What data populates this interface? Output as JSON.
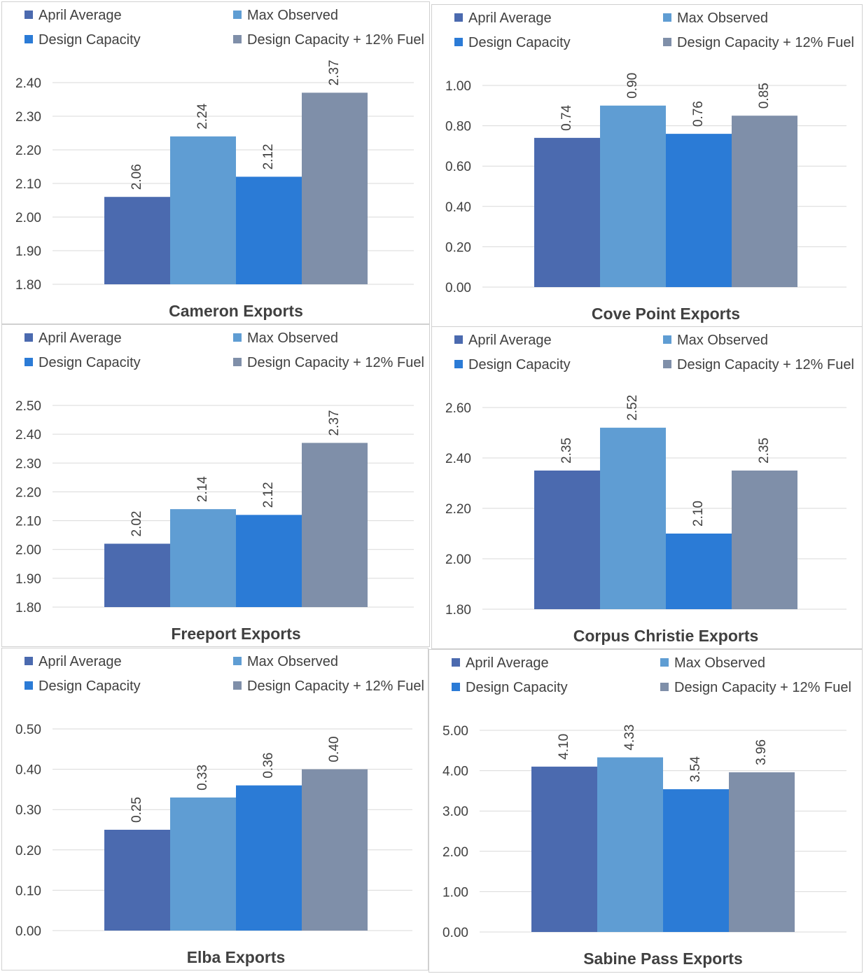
{
  "series_colors": [
    "#4b6aaf",
    "#5f9dd3",
    "#2b7bd6",
    "#7f8fa9"
  ],
  "chart_data": [
    {
      "type": "bar",
      "title": "Cameron Exports",
      "categories": [
        ""
      ],
      "series": [
        {
          "name": "April Average",
          "values": [
            2.06
          ],
          "label": "2.06"
        },
        {
          "name": "Max Observed",
          "values": [
            2.24
          ],
          "label": "2.24"
        },
        {
          "name": "Design Capacity",
          "values": [
            2.12
          ],
          "label": "2.12"
        },
        {
          "name": "Design Capacity + 12% Fuel",
          "values": [
            2.37
          ],
          "label": "2.37"
        }
      ],
      "ylim": [
        1.8,
        2.4
      ],
      "yticks": [
        "1.80",
        "1.90",
        "2.00",
        "2.10",
        "2.20",
        "2.30",
        "2.40"
      ],
      "grid": true,
      "legend": "top"
    },
    {
      "type": "bar",
      "title": "Cove Point Exports",
      "categories": [
        ""
      ],
      "series": [
        {
          "name": "April Average",
          "values": [
            0.74
          ],
          "label": "0.74"
        },
        {
          "name": "Max Observed",
          "values": [
            0.9
          ],
          "label": "0.90"
        },
        {
          "name": "Design Capacity",
          "values": [
            0.76
          ],
          "label": "0.76"
        },
        {
          "name": "Design Capacity + 12% Fuel",
          "values": [
            0.85
          ],
          "label": "0.85"
        }
      ],
      "ylim": [
        0,
        1.0
      ],
      "yticks": [
        "0.00",
        "0.20",
        "0.40",
        "0.60",
        "0.80",
        "1.00"
      ],
      "grid": true,
      "legend": "top"
    },
    {
      "type": "bar",
      "title": "Freeport Exports",
      "categories": [
        ""
      ],
      "series": [
        {
          "name": "April Average",
          "values": [
            2.02
          ],
          "label": "2.02"
        },
        {
          "name": "Max Observed",
          "values": [
            2.14
          ],
          "label": "2.14"
        },
        {
          "name": "Design Capacity",
          "values": [
            2.12
          ],
          "label": "2.12"
        },
        {
          "name": "Design Capacity + 12% Fuel",
          "values": [
            2.37
          ],
          "label": "2.37"
        }
      ],
      "ylim": [
        1.8,
        2.5
      ],
      "yticks": [
        "1.80",
        "1.90",
        "2.00",
        "2.10",
        "2.20",
        "2.30",
        "2.40",
        "2.50"
      ],
      "grid": true,
      "legend": "top"
    },
    {
      "type": "bar",
      "title": "Corpus Christie Exports",
      "categories": [
        ""
      ],
      "series": [
        {
          "name": "April Average",
          "values": [
            2.35
          ],
          "label": "2.35"
        },
        {
          "name": "Max Observed",
          "values": [
            2.52
          ],
          "label": "2.52"
        },
        {
          "name": "Design Capacity",
          "values": [
            2.1
          ],
          "label": "2.10"
        },
        {
          "name": "Design Capacity + 12% Fuel",
          "values": [
            2.35
          ],
          "label": "2.35"
        }
      ],
      "ylim": [
        1.8,
        2.6
      ],
      "yticks": [
        "1.80",
        "2.00",
        "2.20",
        "2.40",
        "2.60"
      ],
      "grid": true,
      "legend": "top"
    },
    {
      "type": "bar",
      "title": "Elba Exports",
      "categories": [
        ""
      ],
      "series": [
        {
          "name": "April Average",
          "values": [
            0.25
          ],
          "label": "0.25"
        },
        {
          "name": "Max Observed",
          "values": [
            0.33
          ],
          "label": "0.33"
        },
        {
          "name": "Design Capacity",
          "values": [
            0.36
          ],
          "label": "0.36"
        },
        {
          "name": "Design Capacity + 12% Fuel",
          "values": [
            0.4
          ],
          "label": "0.40"
        }
      ],
      "ylim": [
        0,
        0.5
      ],
      "yticks": [
        "0.00",
        "0.10",
        "0.20",
        "0.30",
        "0.40",
        "0.50"
      ],
      "grid": true,
      "legend": "top"
    },
    {
      "type": "bar",
      "title": "Sabine Pass Exports",
      "categories": [
        ""
      ],
      "series": [
        {
          "name": "April Average",
          "values": [
            4.1
          ],
          "label": "4.10"
        },
        {
          "name": "Max Observed",
          "values": [
            4.33
          ],
          "label": "4.33"
        },
        {
          "name": "Design Capacity",
          "values": [
            3.54
          ],
          "label": "3.54"
        },
        {
          "name": "Design Capacity + 12% Fuel",
          "values": [
            3.96
          ],
          "label": "3.96"
        }
      ],
      "ylim": [
        0,
        5.0
      ],
      "yticks": [
        "0.00",
        "1.00",
        "2.00",
        "3.00",
        "4.00",
        "5.00"
      ],
      "grid": true,
      "legend": "top"
    }
  ]
}
